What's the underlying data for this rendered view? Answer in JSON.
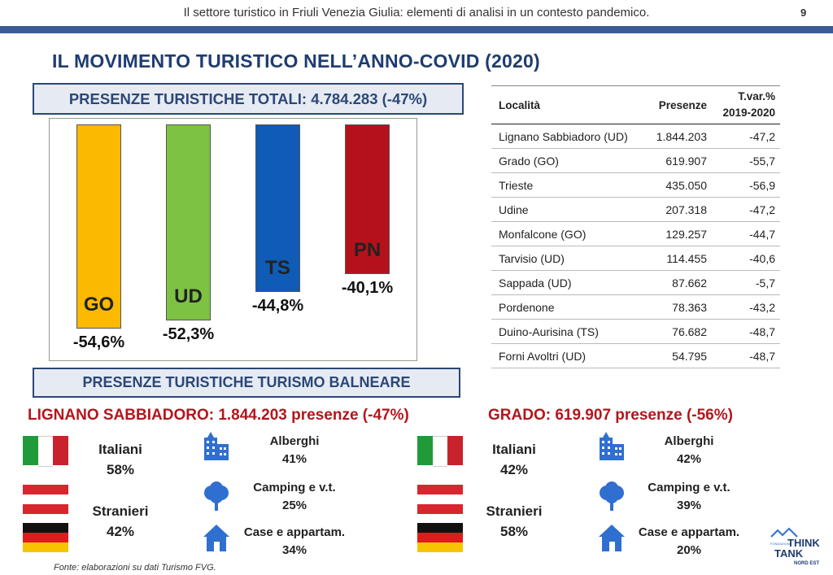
{
  "header": {
    "running_title": "Il settore turistico in Friuli Venezia Giulia: elementi di analisi in un contesto pandemico.",
    "page_number": "9"
  },
  "title": "IL MOVIMENTO TURISTICO NELL’ANNO-COVID (2020)",
  "box_totali": "PRESENZE TURISTICHE TOTALI: 4.784.283 (-47%)",
  "box_balneare": "PRESENZE TURISTICHE TURISMO BALNEARE",
  "chart_data": {
    "type": "bar",
    "categories": [
      "GO",
      "UD",
      "TS",
      "PN"
    ],
    "values": [
      -54.6,
      -52.3,
      -44.8,
      -40.1
    ],
    "value_labels": [
      "-54,6%",
      "-52,3%",
      "-44,8%",
      "-40,1%"
    ],
    "colors": [
      "#fbb900",
      "#7dc242",
      "#0f5bb5",
      "#b5111b"
    ],
    "ylim": [
      0,
      -58
    ]
  },
  "table": {
    "headers": [
      "Località",
      "Presenze",
      "T.var.%",
      "2019-2020"
    ],
    "rows": [
      [
        "Lignano Sabbiadoro (UD)",
        "1.844.203",
        "-47,2"
      ],
      [
        "Grado (GO)",
        "619.907",
        "-55,7"
      ],
      [
        "Trieste",
        "435.050",
        "-56,9"
      ],
      [
        "Udine",
        "207.318",
        "-47,2"
      ],
      [
        "Monfalcone (GO)",
        "129.257",
        "-44,7"
      ],
      [
        "Tarvisio (UD)",
        "114.455",
        "-40,6"
      ],
      [
        "Sappada (UD)",
        "87.662",
        "-5,7"
      ],
      [
        "Pordenone",
        "78.363",
        "-43,2"
      ],
      [
        "Duino-Aurisina (TS)",
        "76.682",
        "-48,7"
      ],
      [
        "Forni Avoltri (UD)",
        "54.795",
        "-48,7"
      ]
    ]
  },
  "lignano": {
    "title": "LIGNANO SABBIADORO: 1.844.203 presenze (-47%)",
    "italiani_label": "Italiani",
    "italiani_pct": "58%",
    "stranieri_label": "Stranieri",
    "stranieri_pct": "42%",
    "alberghi_label": "Alberghi",
    "alberghi_pct": "41%",
    "camping_label": "Camping e v.t.",
    "camping_pct": "25%",
    "case_label": "Case e appartam.",
    "case_pct": "34%"
  },
  "grado": {
    "title": "GRADO: 619.907 presenze (-56%)",
    "italiani_label": "Italiani",
    "italiani_pct": "42%",
    "stranieri_label": "Stranieri",
    "stranieri_pct": "58%",
    "alberghi_label": "Alberghi",
    "alberghi_pct": "42%",
    "camping_label": "Camping e v.t.",
    "camping_pct": "39%",
    "case_label": "Case e appartam.",
    "case_pct": "20%"
  },
  "icons": {
    "flag_italy": "italy-flag-icon",
    "flag_austria": "austria-flag-icon",
    "flag_germany": "germany-flag-icon",
    "hotel": "building-icon",
    "camping": "tree-icon",
    "house": "house-icon"
  },
  "accent_color": "#2f6fd0",
  "fonte": "Fonte: elaborazioni su dati Turismo FVG.",
  "logo": {
    "line1": "FONDAZIONE",
    "line2": "THINK",
    "line3": "TANK",
    "line4": "NORD EST"
  }
}
